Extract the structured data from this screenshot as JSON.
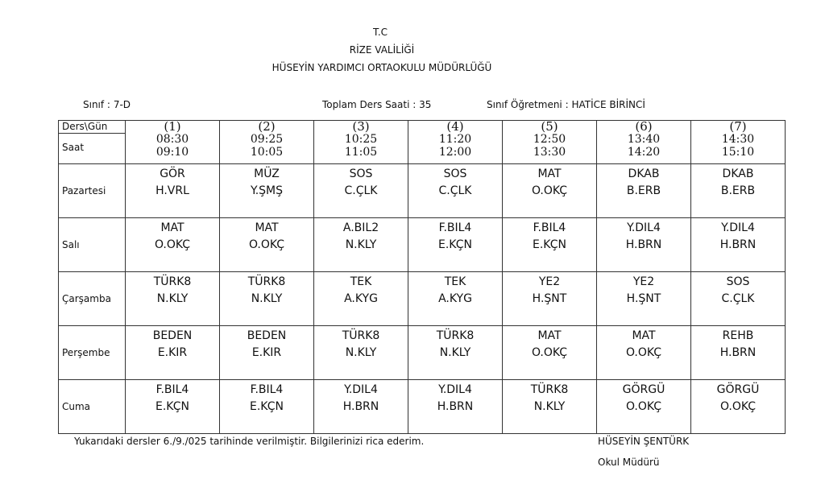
{
  "header": {
    "line1": "T.C",
    "line2": "RİZE VALİLİĞİ",
    "line3": "HÜSEYİN YARDIMCI ORTAOKULU MÜDÜRLÜĞÜ"
  },
  "info": {
    "class_label": "Sınıf :",
    "class_value": "7-D",
    "total_label": "Toplam Ders Saati :",
    "total_value": "35",
    "teacher_label": "Sınıf Öğretmeni :",
    "teacher_value": "HATİCE BİRİNCİ"
  },
  "table": {
    "corner_label": "Ders\\Gün",
    "time_label": "Saat",
    "periods": [
      {
        "num": "(1)",
        "start": "08:30",
        "end": "09:10"
      },
      {
        "num": "(2)",
        "start": "09:25",
        "end": "10:05"
      },
      {
        "num": "(3)",
        "start": "10:25",
        "end": "11:05"
      },
      {
        "num": "(4)",
        "start": "11:20",
        "end": "12:00"
      },
      {
        "num": "(5)",
        "start": "12:50",
        "end": "13:30"
      },
      {
        "num": "(6)",
        "start": "13:40",
        "end": "14:20"
      },
      {
        "num": "(7)",
        "start": "14:30",
        "end": "15:10"
      }
    ],
    "days": [
      {
        "name": "Pazartesi",
        "lessons": [
          [
            "GÖR",
            "H.VRL"
          ],
          [
            "MÜZ",
            "Y.ŞMŞ"
          ],
          [
            "SOS",
            "C.ÇLK"
          ],
          [
            "SOS",
            "C.ÇLK"
          ],
          [
            "MAT",
            "O.OKÇ"
          ],
          [
            "DKAB",
            "B.ERB"
          ],
          [
            "DKAB",
            "B.ERB"
          ]
        ]
      },
      {
        "name": "Salı",
        "lessons": [
          [
            "MAT",
            "O.OKÇ"
          ],
          [
            "MAT",
            "O.OKÇ"
          ],
          [
            "A.BIL2",
            "N.KLY"
          ],
          [
            "F.BIL4",
            "E.KÇN"
          ],
          [
            "F.BIL4",
            "E.KÇN"
          ],
          [
            "Y.DIL4",
            "H.BRN"
          ],
          [
            "Y.DIL4",
            "H.BRN"
          ]
        ]
      },
      {
        "name": "Çarşamba",
        "lessons": [
          [
            "TÜRK8",
            "N.KLY"
          ],
          [
            "TÜRK8",
            "N.KLY"
          ],
          [
            "TEK",
            "A.KYG"
          ],
          [
            "TEK",
            "A.KYG"
          ],
          [
            "YE2",
            "H.ŞNT"
          ],
          [
            "YE2",
            "H.ŞNT"
          ],
          [
            "SOS",
            "C.ÇLK"
          ]
        ]
      },
      {
        "name": "Perşembe",
        "lessons": [
          [
            "BEDEN",
            "E.KIR"
          ],
          [
            "BEDEN",
            "E.KIR"
          ],
          [
            "TÜRK8",
            "N.KLY"
          ],
          [
            "TÜRK8",
            "N.KLY"
          ],
          [
            "MAT",
            "O.OKÇ"
          ],
          [
            "MAT",
            "O.OKÇ"
          ],
          [
            "REHB",
            "H.BRN"
          ]
        ]
      },
      {
        "name": "Cuma",
        "lessons": [
          [
            "F.BIL4",
            "E.KÇN"
          ],
          [
            "F.BIL4",
            "E.KÇN"
          ],
          [
            "Y.DIL4",
            "H.BRN"
          ],
          [
            "Y.DIL4",
            "H.BRN"
          ],
          [
            "TÜRK8",
            "N.KLY"
          ],
          [
            "GÖRGÜ",
            "O.OKÇ"
          ],
          [
            "GÖRGÜ",
            "O.OKÇ"
          ]
        ]
      }
    ]
  },
  "footer": {
    "note": "Yukarıdaki dersler 6./9./025  tarihinde verilmiştir. Bilgilerinizi rica ederim.",
    "principal_name": "HÜSEYİN ŞENTÜRK",
    "principal_title": "Okul Müdürü"
  }
}
